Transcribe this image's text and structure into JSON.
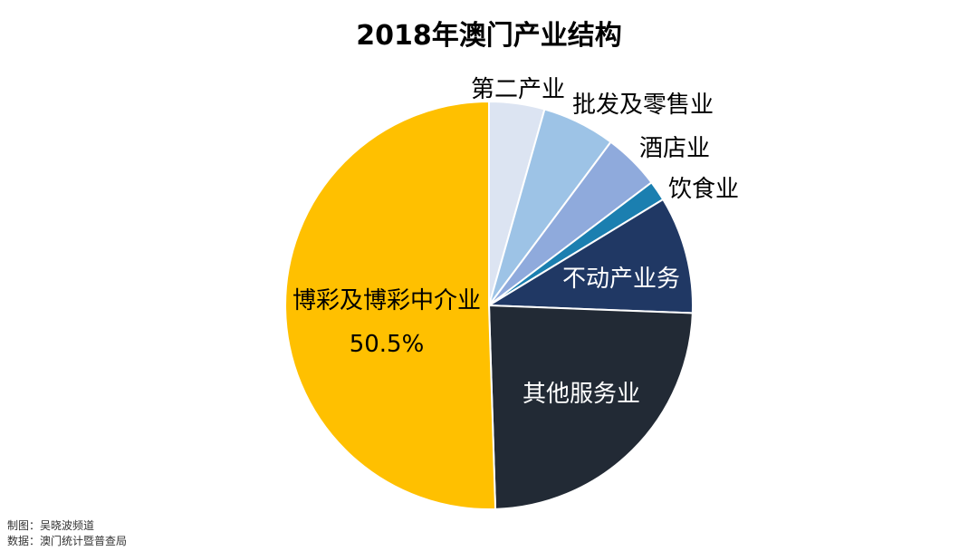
{
  "title": "2018年澳门产业结构",
  "chart_data": {
    "type": "pie",
    "title": "2018年澳门产业结构",
    "slices": [
      {
        "name": "第二产业",
        "value": 4.4,
        "color": "#DCE4F2"
      },
      {
        "name": "批发及零售业",
        "value": 5.8,
        "color": "#9DC3E6"
      },
      {
        "name": "酒店业",
        "value": 4.5,
        "color": "#8FAADC"
      },
      {
        "name": "饮食业",
        "value": 1.6,
        "color": "#1B7FB0"
      },
      {
        "name": "不动产业务",
        "value": 9.3,
        "color": "#203864"
      },
      {
        "name": "其他服务业",
        "value": 23.9,
        "color": "#222A35"
      },
      {
        "name": "博彩及博彩中介业",
        "value": 50.5,
        "color": "#FFC000",
        "value_label": "50.5%"
      }
    ]
  },
  "footer": {
    "credit": "制图：吴晓波频道",
    "source": "数据：澳门统计暨普查局"
  }
}
